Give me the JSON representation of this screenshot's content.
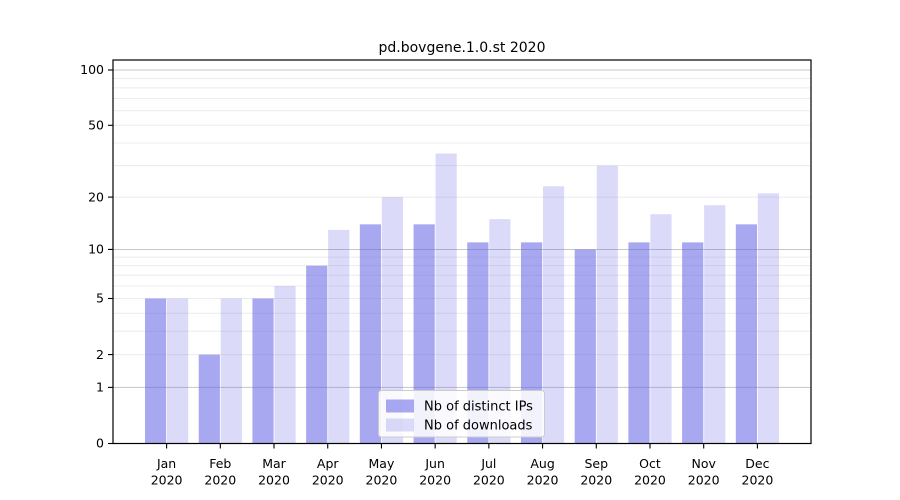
{
  "chart_data": {
    "type": "bar",
    "title": "pd.bovgene.1.0.st 2020",
    "categories": [
      "Jan",
      "Feb",
      "Mar",
      "Apr",
      "May",
      "Jun",
      "Jul",
      "Aug",
      "Sep",
      "Oct",
      "Nov",
      "Dec"
    ],
    "year_label": "2020",
    "series": [
      {
        "name": "Nb of distinct IPs",
        "color": "rgba(102,102,230,0.57)",
        "solid_color_hex": "#a6a6ef",
        "values": [
          5,
          2,
          5,
          8,
          14,
          14,
          11,
          11,
          10,
          11,
          11,
          14
        ]
      },
      {
        "name": "Nb of downloads",
        "color": "rgba(102,102,230,0.235)",
        "solid_color_hex": "#dbdbf9",
        "values": [
          5,
          5,
          6,
          13,
          20,
          35,
          15,
          23,
          30,
          16,
          18,
          21
        ]
      }
    ],
    "yscale": "log1p",
    "ylim": [
      0,
      113
    ],
    "yticks": [
      0,
      1,
      2,
      5,
      10,
      20,
      50,
      100
    ],
    "ytick_labels": [
      "0",
      "1",
      "2",
      "5",
      "10",
      "20",
      "50",
      "100"
    ],
    "major_gridlines": [
      1,
      10,
      100
    ],
    "minor_gridlines": [
      2,
      3,
      4,
      5,
      6,
      7,
      8,
      9,
      20,
      30,
      40,
      50,
      60,
      70,
      80,
      90
    ],
    "grid": {
      "major_color": "#c6c6c6",
      "minor_color": "#ececec"
    },
    "legend": {
      "position": "lower-center",
      "background": "rgba(255,255,255,0.85)",
      "border_color": "#cccccc"
    },
    "spine_color": "#000000"
  }
}
